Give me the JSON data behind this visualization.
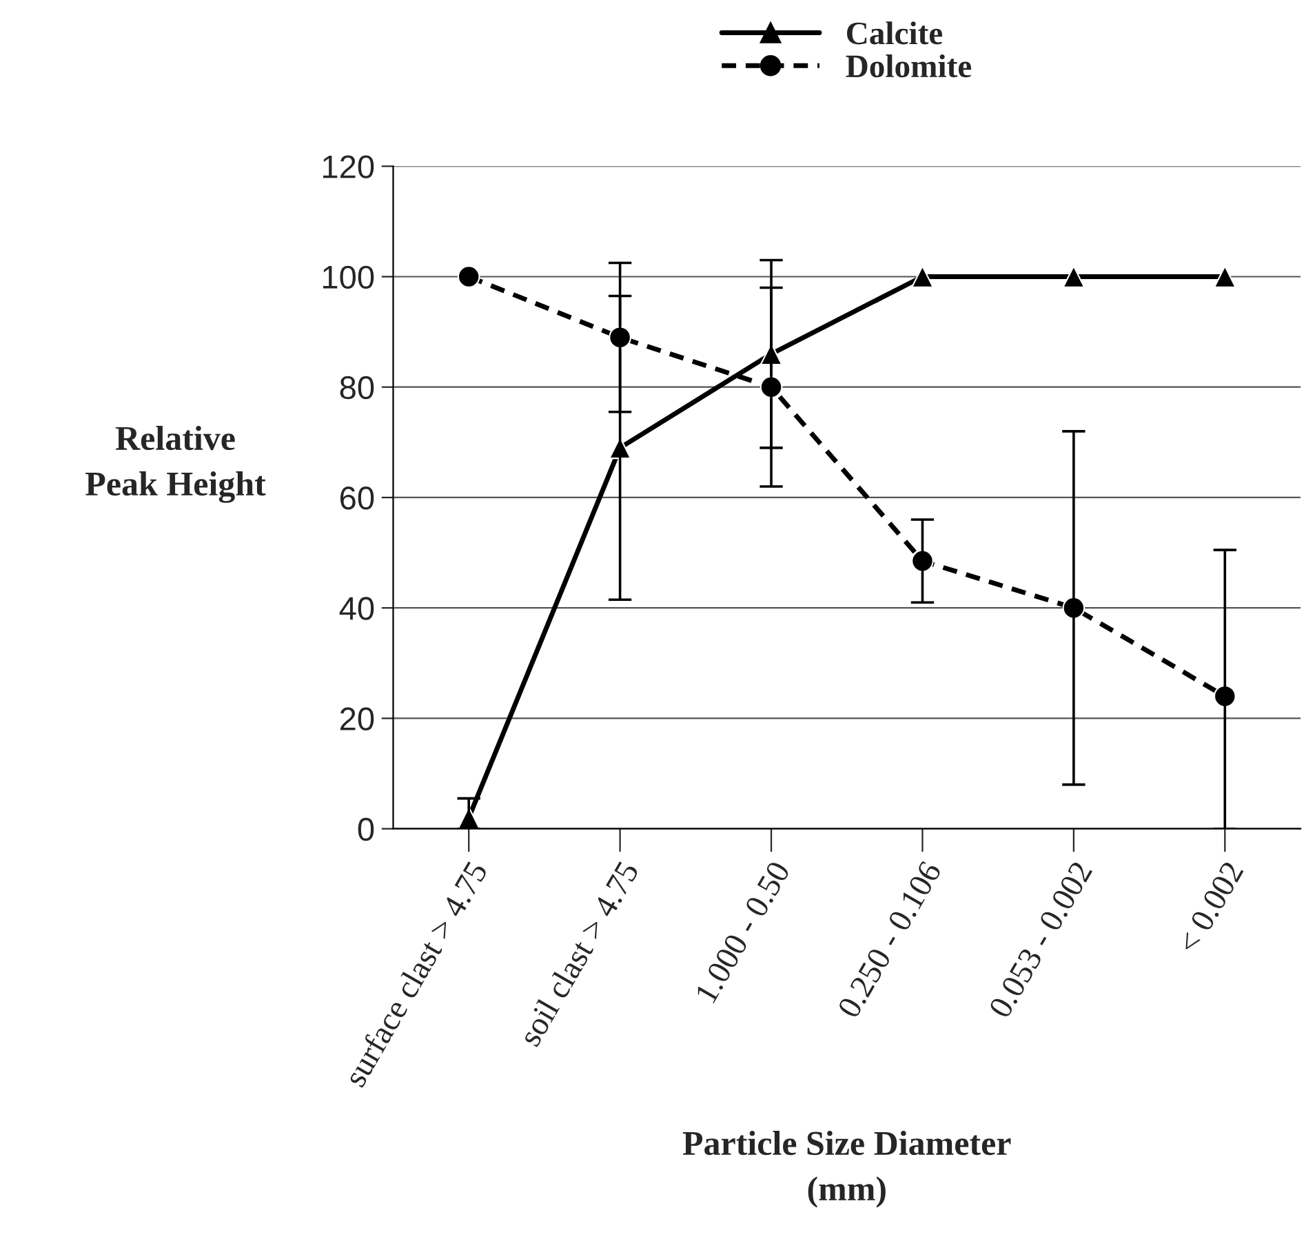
{
  "chart_data": {
    "type": "line",
    "xlabel": "Particle Size Diameter\n(mm)",
    "ylabel": "Relative\nPeak Height",
    "categories": [
      "surface clast > 4.75",
      "soil clast > 4.75",
      "1.000 - 0.50",
      "0.250 - 0.106",
      "0.053 - 0.002",
      "< 0.002"
    ],
    "series": [
      {
        "name": "Calcite",
        "color": "#000000",
        "marker": "triangle",
        "line_style": "solid",
        "values": [
          2,
          69,
          86,
          100,
          100,
          100
        ],
        "errors": [
          [
            0,
            5.5
          ],
          27.5,
          17,
          null,
          null,
          null
        ]
      },
      {
        "name": "Dolomite",
        "color": "#000000",
        "marker": "circle",
        "line_style": "dashed",
        "values": [
          100,
          89,
          80,
          48.5,
          40,
          24
        ],
        "errors": [
          null,
          13.5,
          18,
          7.5,
          32,
          [
            0,
            50.5
          ]
        ]
      }
    ],
    "ylim": [
      0,
      120
    ],
    "yticks": [
      0,
      20,
      40,
      60,
      80,
      100,
      120
    ],
    "grid": "y",
    "legend": "top"
  }
}
